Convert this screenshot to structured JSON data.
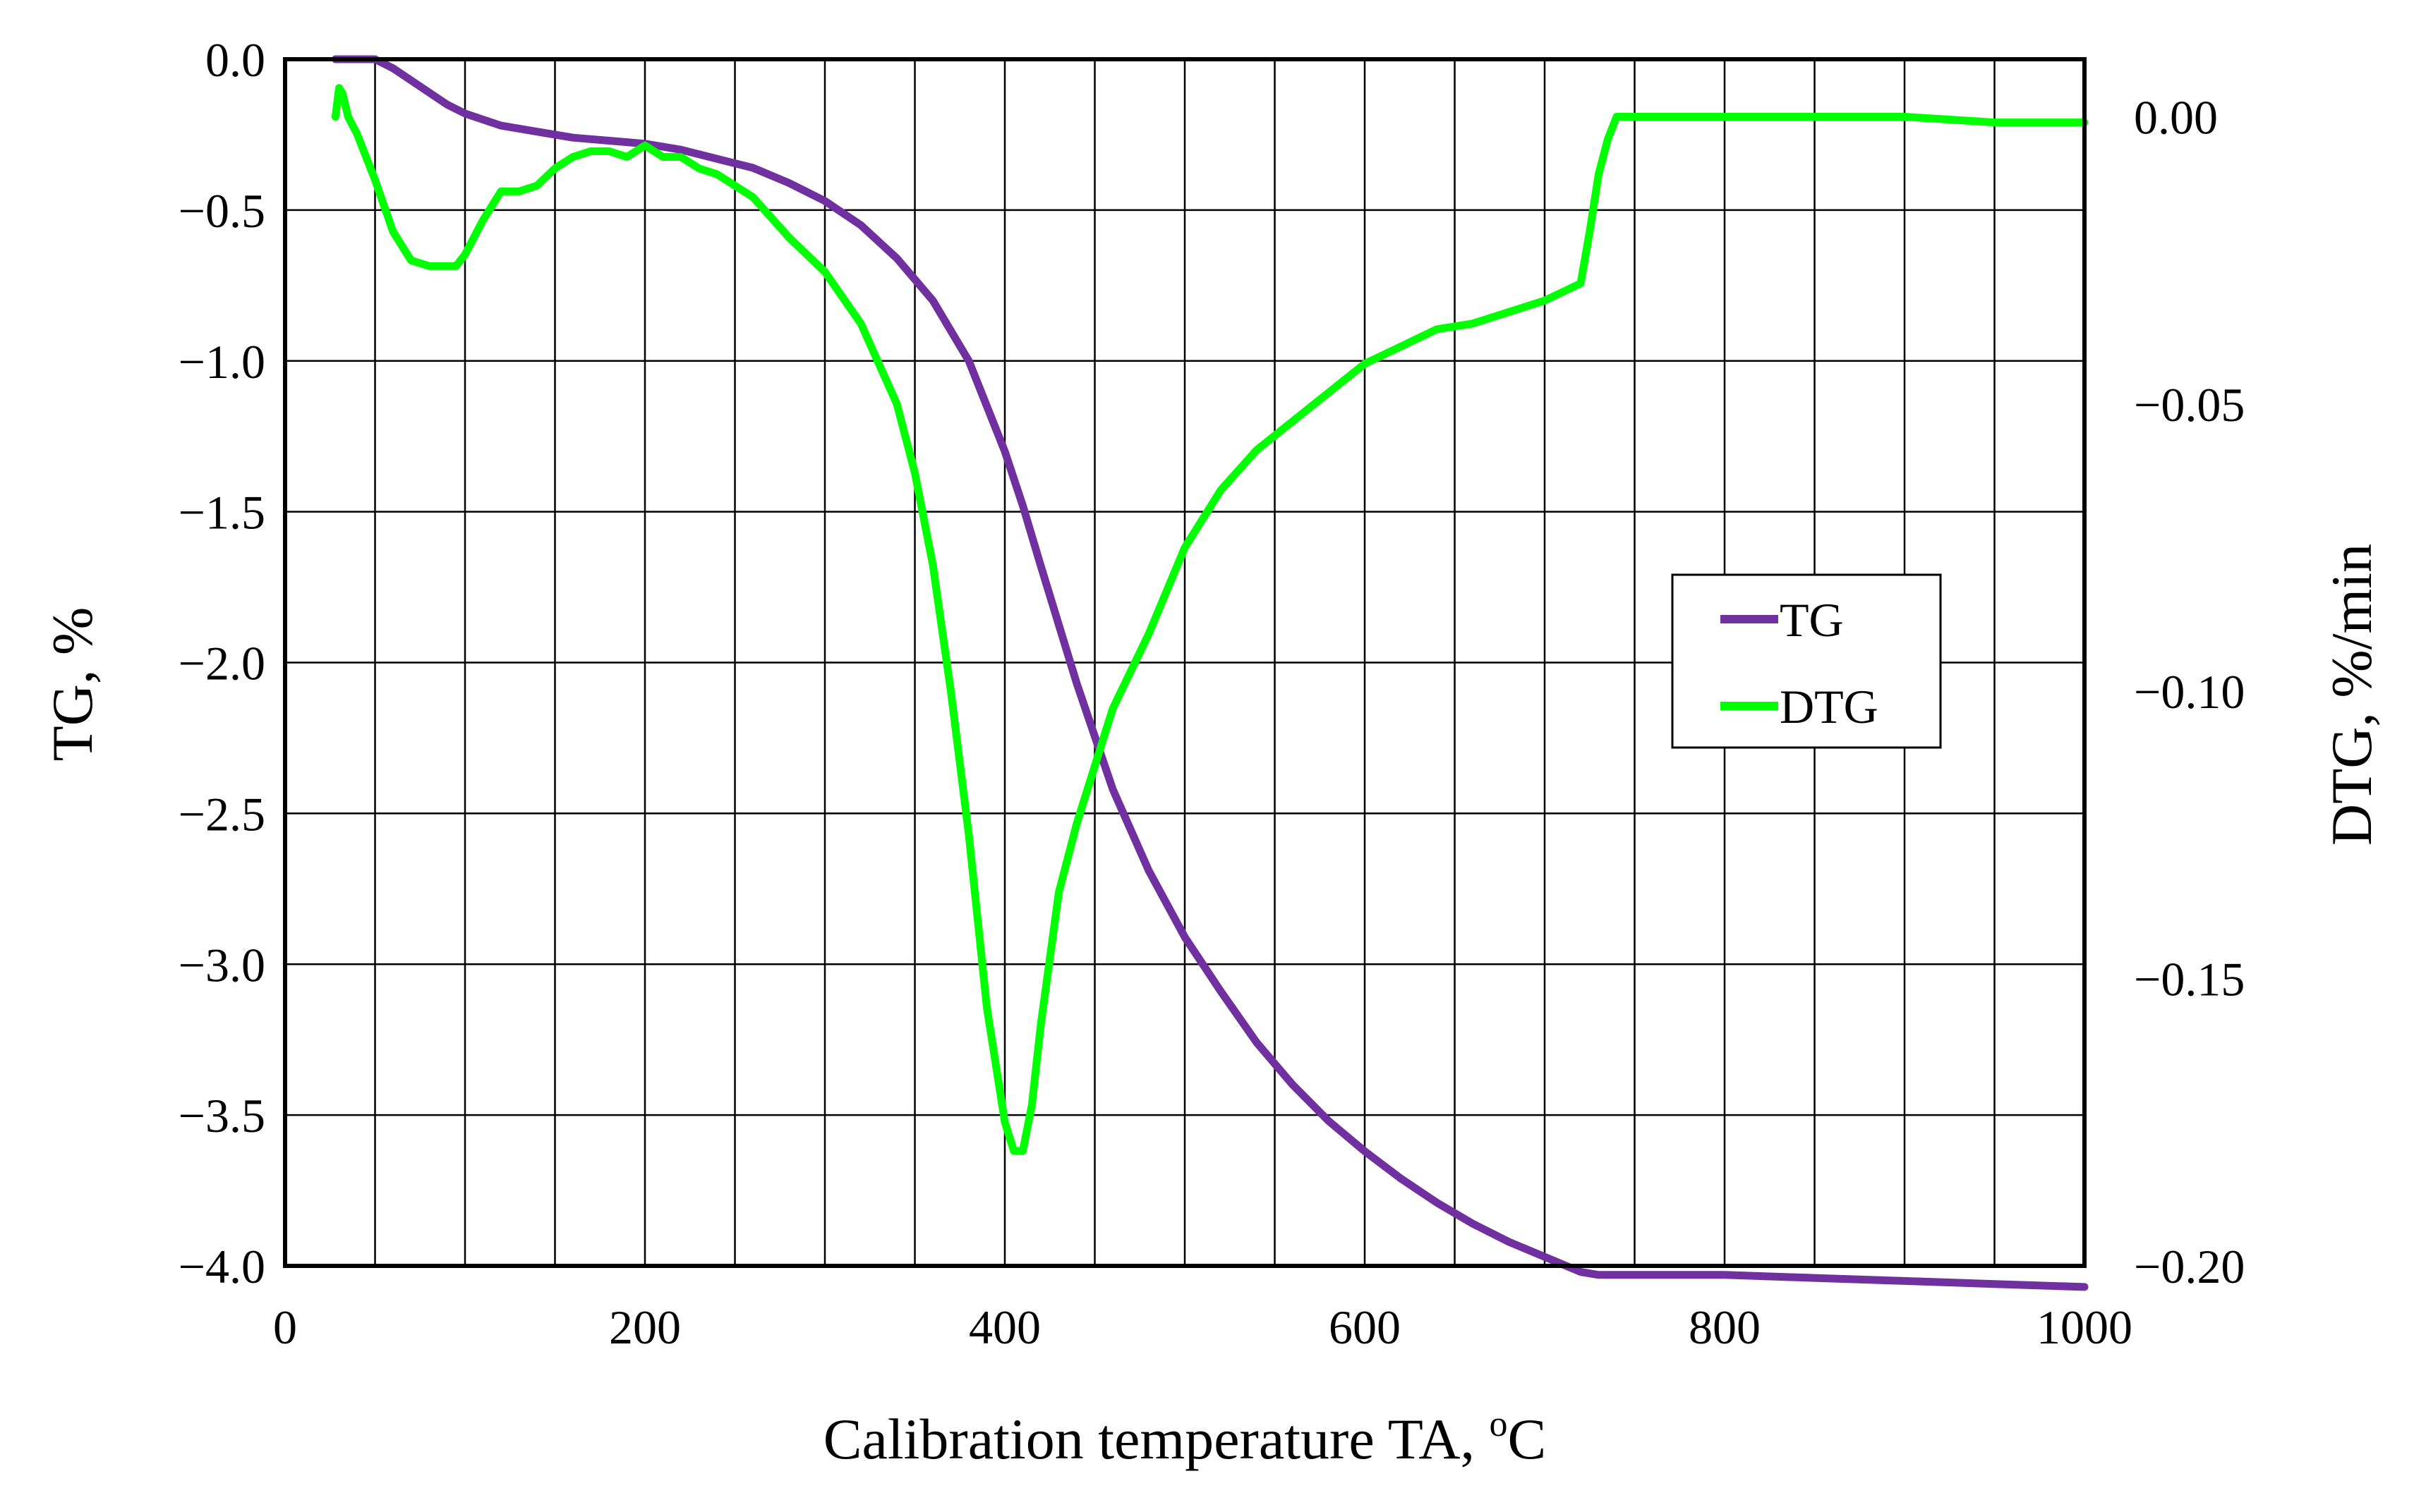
{
  "chart_data": {
    "type": "line",
    "title": "",
    "xlabel": "Calibration temperature TA, ",
    "xlabel_unit_sup": "o",
    "xlabel_unit_tail": "C",
    "ylabel_left": "TG, %",
    "ylabel_right": "DTG, %/min",
    "xlim": [
      0,
      1000
    ],
    "ylim_left": [
      -4.0,
      0.0
    ],
    "ylim_right": [
      -0.2,
      0.01
    ],
    "x_ticks": [
      0,
      200,
      400,
      600,
      800,
      1000
    ],
    "x_tick_labels": [
      "0",
      "200",
      "400",
      "600",
      "800",
      "1000"
    ],
    "x_grid": [
      50,
      100,
      150,
      200,
      250,
      300,
      350,
      400,
      450,
      500,
      550,
      600,
      650,
      700,
      750,
      800,
      850,
      900,
      950
    ],
    "y_left_ticks": [
      0.0,
      -0.5,
      -1.0,
      -1.5,
      -2.0,
      -2.5,
      -3.0,
      -3.5,
      -4.0
    ],
    "y_left_tick_labels": [
      "0.0",
      "−0.5",
      "−1.0",
      "−1.5",
      "−2.0",
      "−2.5",
      "−3.0",
      "−3.5",
      "−4.0"
    ],
    "y_right_ticks": [
      0.0,
      -0.05,
      -0.1,
      -0.15,
      -0.2
    ],
    "y_right_tick_labels": [
      "0.00",
      "−0.05",
      "−0.10",
      "−0.15",
      "−0.20"
    ],
    "grid": true,
    "legend_position": "right-middle",
    "series": [
      {
        "name": "TG",
        "axis": "left",
        "color": "#7030a0",
        "x": [
          28,
          40,
          50,
          60,
          70,
          80,
          90,
          100,
          110,
          120,
          140,
          160,
          180,
          200,
          220,
          240,
          260,
          280,
          300,
          320,
          340,
          360,
          380,
          400,
          410,
          420,
          440,
          460,
          480,
          500,
          520,
          540,
          560,
          580,
          600,
          620,
          640,
          660,
          680,
          700,
          720,
          730,
          740,
          760,
          800,
          850,
          900,
          950,
          1000
        ],
        "values": [
          0.0,
          0.0,
          0.0,
          -0.03,
          -0.07,
          -0.11,
          -0.15,
          -0.18,
          -0.2,
          -0.22,
          -0.24,
          -0.26,
          -0.27,
          -0.28,
          -0.3,
          -0.33,
          -0.36,
          -0.41,
          -0.47,
          -0.55,
          -0.66,
          -0.8,
          -1.0,
          -1.3,
          -1.48,
          -1.68,
          -2.07,
          -2.42,
          -2.69,
          -2.91,
          -3.09,
          -3.26,
          -3.4,
          -3.52,
          -3.62,
          -3.71,
          -3.79,
          -3.86,
          -3.92,
          -3.97,
          -4.02,
          -4.03,
          -4.03,
          -4.03,
          -4.03,
          -4.04,
          -4.05,
          -4.06,
          -4.07
        ]
      },
      {
        "name": "DTG",
        "axis": "right",
        "color": "#00ff00",
        "x": [
          28,
          30,
          32,
          35,
          40,
          50,
          60,
          70,
          80,
          90,
          95,
          100,
          110,
          120,
          130,
          140,
          150,
          160,
          170,
          180,
          190,
          200,
          210,
          220,
          230,
          240,
          260,
          280,
          300,
          320,
          340,
          350,
          360,
          370,
          380,
          390,
          400,
          405,
          410,
          415,
          420,
          430,
          440,
          450,
          460,
          480,
          500,
          520,
          540,
          560,
          580,
          600,
          620,
          640,
          660,
          680,
          700,
          720,
          725,
          730,
          735,
          740,
          745,
          760,
          800,
          850,
          900,
          950,
          1000
        ],
        "values": [
          -0.0,
          0.005,
          0.004,
          0.0,
          -0.003,
          -0.011,
          -0.02,
          -0.025,
          -0.026,
          -0.026,
          -0.026,
          -0.024,
          -0.018,
          -0.013,
          -0.013,
          -0.012,
          -0.009,
          -0.007,
          -0.006,
          -0.006,
          -0.007,
          -0.005,
          -0.007,
          -0.007,
          -0.009,
          -0.01,
          -0.014,
          -0.021,
          -0.027,
          -0.036,
          -0.05,
          -0.062,
          -0.078,
          -0.1,
          -0.125,
          -0.155,
          -0.175,
          -0.18,
          -0.18,
          -0.172,
          -0.158,
          -0.135,
          -0.123,
          -0.113,
          -0.103,
          -0.09,
          -0.075,
          -0.065,
          -0.058,
          -0.053,
          -0.048,
          -0.043,
          -0.04,
          -0.037,
          -0.036,
          -0.034,
          -0.032,
          -0.029,
          -0.02,
          -0.01,
          -0.004,
          0.0,
          0.0,
          0.0,
          0.0,
          0.0,
          0.0,
          -0.001,
          -0.001
        ]
      }
    ]
  }
}
